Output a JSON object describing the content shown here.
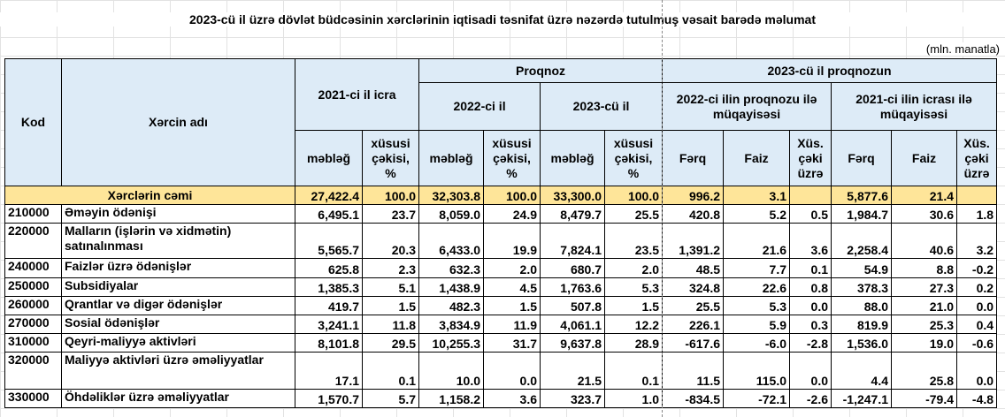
{
  "title": "2023-cü il üzrə dövlət büdcəsinin xərclərinin iqtisadi təsnifat üzrə nəzərdə tutulmuş vəsait barədə məlumat",
  "unit": "(mln. manatla)",
  "headers": {
    "kod": "Kod",
    "name": "Xərcin adı",
    "icra2021": "2021-ci il icra",
    "proqnoz": "Proqnoz",
    "y2022": "2022-ci il",
    "y2023": "2023-cü il",
    "proqnozun2023": "2023-cü il proqnozun",
    "cmp2022": "2022-ci ilin proqnozu ilə müqayisəsi",
    "cmp2021": "2021-ci ilin icrası ilə müqayisəsi",
    "mebleg": "məbləğ",
    "xususi": "xüsusi çəkisi, %",
    "ferq": "Fərq",
    "faiz": "Faiz",
    "xus": "Xüs. çəki üzrə"
  },
  "total": {
    "label": "Xərclərin cəmi",
    "values": [
      "27,422.4",
      "100.0",
      "32,303.8",
      "100.0",
      "33,300.0",
      "100.0",
      "996.2",
      "3.1",
      "",
      "5,877.6",
      "21.4",
      ""
    ]
  },
  "rows": [
    {
      "code": "210000",
      "name": "Əməyin ödənişi",
      "values": [
        "6,495.1",
        "23.7",
        "8,059.0",
        "24.9",
        "8,479.7",
        "25.5",
        "420.8",
        "5.2",
        "0.5",
        "1,984.7",
        "30.6",
        "1.8"
      ]
    },
    {
      "code": "220000",
      "name": "Malların (işlərin və xidmətin) satınalınması",
      "values": [
        "5,565.7",
        "20.3",
        "6,433.0",
        "19.9",
        "7,824.1",
        "23.5",
        "1,391.2",
        "21.6",
        "3.6",
        "2,258.4",
        "40.6",
        "3.2"
      ]
    },
    {
      "code": "240000",
      "name": "Faizlər üzrə ödənişlər",
      "values": [
        "625.8",
        "2.3",
        "632.3",
        "2.0",
        "680.7",
        "2.0",
        "48.5",
        "7.7",
        "0.1",
        "54.9",
        "8.8",
        "-0.2"
      ]
    },
    {
      "code": "250000",
      "name": "Subsidiyalar",
      "values": [
        "1,385.3",
        "5.1",
        "1,438.9",
        "4.5",
        "1,763.6",
        "5.3",
        "324.8",
        "22.6",
        "0.8",
        "378.3",
        "27.3",
        "0.2"
      ]
    },
    {
      "code": "260000",
      "name": "Qrantlar və digər ödənişlər",
      "values": [
        "419.7",
        "1.5",
        "482.3",
        "1.5",
        "507.8",
        "1.5",
        "25.5",
        "5.3",
        "0.0",
        "88.0",
        "21.0",
        "0.0"
      ]
    },
    {
      "code": "270000",
      "name": "Sosial ödənişlər",
      "values": [
        "3,241.1",
        "11.8",
        "3,834.9",
        "11.9",
        "4,061.1",
        "12.2",
        "226.1",
        "5.9",
        "0.3",
        "819.9",
        "25.3",
        "0.4"
      ]
    },
    {
      "code": "310000",
      "name": "Qeyri-maliyyə aktivləri",
      "values": [
        "8,101.8",
        "29.5",
        "10,255.3",
        "31.7",
        "9,637.8",
        "28.9",
        "-617.6",
        "-6.0",
        "-2.8",
        "1,536.0",
        "19.0",
        "-0.6"
      ]
    },
    {
      "code": "320000",
      "name": "Maliyyə aktivləri üzrə əməliyyatlar",
      "values": [
        "17.1",
        "0.1",
        "10.0",
        "0.0",
        "21.5",
        "0.1",
        "11.5",
        "115.0",
        "0.0",
        "4.4",
        "25.8",
        "0.0"
      ]
    },
    {
      "code": "330000",
      "name": "Öhdəliklər üzrə əməliyyatlar",
      "values": [
        "1,570.7",
        "5.7",
        "1,158.2",
        "3.6",
        "323.7",
        "1.0",
        "-834.5",
        "-72.1",
        "-2.6",
        "-1,247.1",
        "-79.4",
        "-4.8"
      ]
    }
  ],
  "colors": {
    "header_fill": "#ddebf7",
    "total_fill": "#fee599"
  }
}
